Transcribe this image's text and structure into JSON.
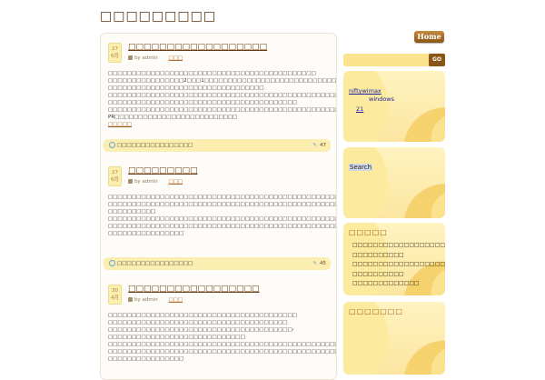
{
  "site": {
    "title": "□□□□□□□□□"
  },
  "nav": {
    "home": "Home"
  },
  "posts": [
    {
      "day": "27",
      "month": "6月",
      "title": "□□□□□□□□□□□□□□□□□□",
      "author": "by admin",
      "category": "□□□",
      "body": [
        "□□□□□□□□□□□□□□□□□□□□□□□□□□□□□□□□□□□□□□□□□□□□",
        "□□□□□□□□□□□□□□□□2□□□1□□□□□□□□□□□□□□□□□□□□□□□□□□□□□□□",
        "□□□□□□□□□□□□□□□□□□□□□□□□□□□□□□□□□",
        "□□□□□□□□□□□□□□□□□□□□□□□□□□□□□□□□□□□□□□□□□□□□□□□□□□□□□□□□□□□□□□□□□",
        "□□□□□□□□□□□□□□□□□□□□□□□□□□□□□□□□□□□□□□□□",
        "□□□□□□□□□□□□□□□□□□□□□□□□□□□□□□□□□□□□□□□□□□□□□□□□□□□□□□□□□□□□□□□□□□□□□",
        "PR□□□□□□□□□□□□□□□□□□□□□□□□□□"
      ],
      "more": "□□□□□",
      "comment_label": "□□□□□□□□□□□□□□□□",
      "comment_count": "47"
    },
    {
      "day": "27",
      "month": "6月",
      "title": "□□□□□□□□□",
      "author": "by admin",
      "category": "□□□",
      "body": [
        "□□□□□□□□□□□□□□□□□□□□□□□□□□□□□□□□□□□□□□□□□□□□□□□□□□□□□□□□□□□□□□□□□",
        "□□□□□□□□□□□□□□□□□□□□□□□□□□□□□□□□□□□□□□□□□□□□□□□□□□□□□□□□□□□□□□□□□□□□□□□□□□□□□",
        "□□□□□□□□□□",
        "□□□□□□□□□□□□□□□□□□□□□□□□□□□□□□□□□□□□□□□□□□□□□□□□□□□□□□□□□□□□□□□□□□□□□□",
        "□□□□□□□□□□□□□□□□□□□□□□□□□□□□□□□□□□□□□□□□□□□□□□□□□□□□□□□□□□□□□□□□□□□□□□□□□□□□□□",
        "□□□□□□□□□□□□□□□□"
      ],
      "comment_label": "□□□□□□□□□□□□□□□□",
      "comment_count": "45"
    },
    {
      "day": "30",
      "month": "4月",
      "title": "□□□□□□□□□□□□□□□□□",
      "author": "by admin",
      "category": "□□□",
      "body": [
        "□□□□□□□□□□□□□□□□□□□□□□□□□□□□□□□□□□□□□□□□",
        "□□□□□□□□□□□□□□□□□□□□□□□□□□□□□□□□□□□□□□",
        "□□□□□□□□□□□□□□□□□□□□□□□□□□□□□□□□□□□□□□□-□□□□□□□□□□□□□□□□□□□□□□□□□□□□□",
        "□□□□□□□□□□□□□□□□□□□□□□□□□□□□□□□□□□□□□□□□□□□□□□□□□□□□□□□□□□□□□□",
        "□□□□□□□□□□□□□□□□□□□□□□□□□□□□□□□□□□□□□□□□□□□□□□□□□□□□□□□□□□□□□□□□□□□□□□□□□□□",
        "□□□□□□□□□□□□□□□□"
      ]
    }
  ],
  "sidebar": {
    "go": "GO",
    "links": {
      "a": "niftywimax",
      "b": "windows",
      "c": "21"
    },
    "search_label": "Search",
    "recent_heading": "□□□□□",
    "recent": [
      "□□□□□□□□□□□□□□□□□□",
      "□□□□□□□□□□",
      "□□□□□□□□□□□□□□□□□□",
      "□□□□□□□□□□",
      "□□□□□□□□□□□□□"
    ],
    "cat_heading": "□□□□□□□"
  }
}
